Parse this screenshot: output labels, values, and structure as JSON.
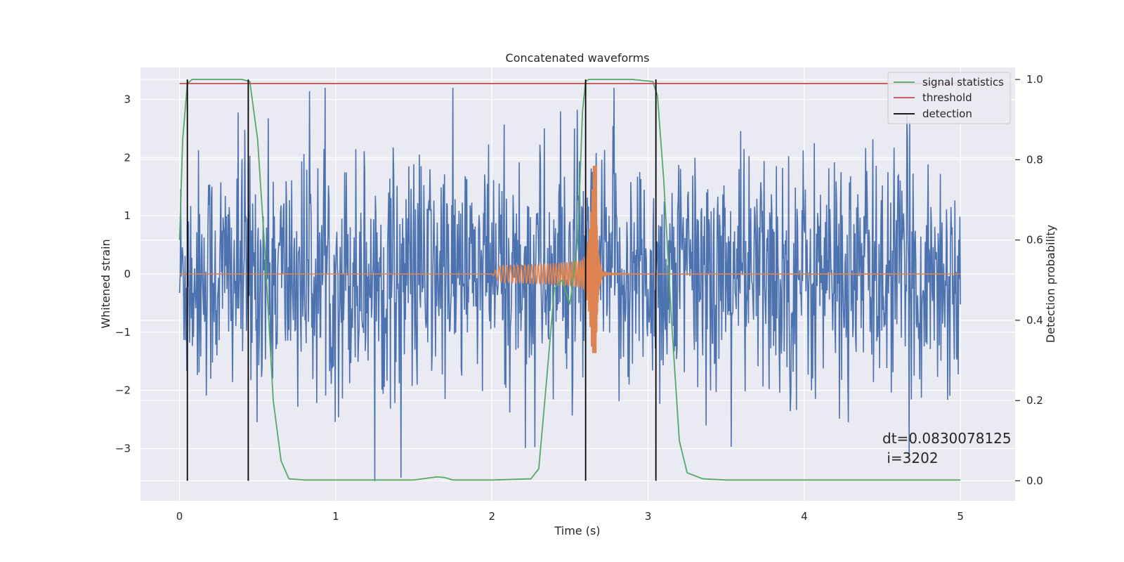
{
  "chart_data": {
    "type": "line",
    "title": "Concatenated waveforms",
    "xlabel": "Time (s)",
    "ylabel": "Whitened strain",
    "y2label": "Detection probability",
    "xlim": [
      -0.25,
      5.35
    ],
    "ylim": [
      -3.9,
      3.55
    ],
    "y2lim": [
      -0.05,
      1.03
    ],
    "xticks": [
      0,
      1,
      2,
      3,
      4,
      5
    ],
    "yticks": [
      -3,
      -2,
      -1,
      0,
      1,
      2,
      3
    ],
    "y2ticks": [
      "0.0",
      "0.2",
      "0.4",
      "0.6",
      "0.8",
      "1.0"
    ],
    "grid": true,
    "legend_position": "top-right",
    "series": [
      {
        "name": "",
        "axis": "left",
        "color": "#4c72b0",
        "kind": "whitened noise",
        "x_range": [
          0,
          5
        ],
        "samples": 1400,
        "y_range": [
          -3.6,
          3.2
        ]
      },
      {
        "name": "",
        "axis": "left",
        "color": "#dd8452",
        "kind": "chirp",
        "x_range": [
          0,
          5
        ],
        "chirp_start": 2.0,
        "merger": 2.67,
        "peak": [
          1.85,
          -1.35
        ]
      },
      {
        "name": "signal statistics",
        "axis": "right",
        "color": "#55a868",
        "x": [
          0,
          0.02,
          0.05,
          0.08,
          0.12,
          0.2,
          0.4,
          0.45,
          0.5,
          0.55,
          0.6,
          0.65,
          0.7,
          0.8,
          1.0,
          1.5,
          1.65,
          1.7,
          1.75,
          2.0,
          2.25,
          2.3,
          2.35,
          2.4,
          2.45,
          2.5,
          2.55,
          2.58,
          2.6,
          2.62,
          2.7,
          2.9,
          3.03,
          3.06,
          3.1,
          3.15,
          3.2,
          3.25,
          3.35,
          3.5,
          4.0,
          4.5,
          5.0
        ],
        "y": [
          0.6,
          0.85,
          0.99,
          1.0,
          1.0,
          1.0,
          1.0,
          0.995,
          0.85,
          0.55,
          0.2,
          0.05,
          0.005,
          0.002,
          0.002,
          0.002,
          0.01,
          0.008,
          0.002,
          0.002,
          0.005,
          0.03,
          0.25,
          0.48,
          0.5,
          0.44,
          0.6,
          0.92,
          0.995,
          1.0,
          1.0,
          1.0,
          0.995,
          0.96,
          0.75,
          0.4,
          0.1,
          0.02,
          0.005,
          0.002,
          0.002,
          0.002,
          0.002
        ]
      },
      {
        "name": "threshold",
        "axis": "right",
        "color": "#c44e52",
        "x": [
          0,
          5
        ],
        "y": [
          0.99,
          0.99
        ]
      },
      {
        "name": "detection",
        "axis": "right",
        "color": "#000000",
        "vlines": [
          0.05,
          0.44,
          2.6,
          3.05
        ],
        "ymin": 0.0,
        "ymax": 1.0
      }
    ],
    "annotation_lines": [
      "dt=0.0830078125",
      " i=3202"
    ]
  }
}
